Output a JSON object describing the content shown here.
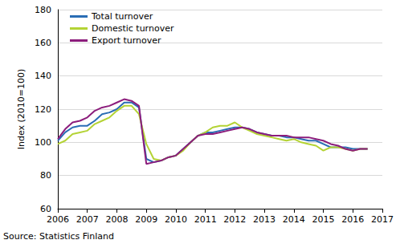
{
  "chart_data": {
    "type": "line",
    "y_label": "Index (2010=100)",
    "source": "Source: Statistics Finland",
    "x": [
      2006,
      2006.25,
      2006.5,
      2006.75,
      2007,
      2007.25,
      2007.5,
      2007.75,
      2008,
      2008.25,
      2008.5,
      2008.75,
      2009,
      2009.25,
      2009.5,
      2009.75,
      2010,
      2010.25,
      2010.5,
      2010.75,
      2011,
      2011.25,
      2011.5,
      2011.75,
      2012,
      2012.25,
      2012.5,
      2012.75,
      2013,
      2013.25,
      2013.5,
      2013.75,
      2014,
      2014.25,
      2014.5,
      2014.75,
      2015,
      2015.25,
      2015.5,
      2015.75,
      2016,
      2016.25,
      2016.5
    ],
    "series": [
      {
        "name": "Total turnover",
        "color": "#2a6db5",
        "values": [
          101,
          106,
          109,
          110,
          110,
          113,
          117,
          118,
          120,
          124,
          124,
          121,
          90,
          88,
          89,
          91,
          92,
          96,
          100,
          104,
          106,
          106,
          107,
          108,
          109,
          109,
          108,
          106,
          105,
          104,
          104,
          103,
          103,
          102,
          101,
          101,
          99,
          97,
          97,
          97,
          96,
          96,
          96
        ]
      },
      {
        "name": "Domestic turnover",
        "color": "#b4d335",
        "values": [
          99,
          101,
          105,
          106,
          107,
          111,
          113,
          115,
          119,
          122,
          122,
          117,
          99,
          90,
          89,
          91,
          92,
          95,
          100,
          104,
          106,
          109,
          110,
          110,
          112,
          109,
          107,
          105,
          104,
          103,
          102,
          101,
          102,
          100,
          99,
          98,
          95,
          97,
          97,
          96,
          95,
          96,
          96
        ]
      },
      {
        "name": "Export turnover",
        "color": "#8c1d7c",
        "values": [
          102,
          108,
          112,
          113,
          115,
          119,
          121,
          122,
          124,
          126,
          125,
          122,
          87,
          88,
          89,
          91,
          92,
          96,
          100,
          104,
          105,
          105,
          106,
          107,
          108,
          109,
          108,
          106,
          105,
          104,
          104,
          104,
          103,
          103,
          103,
          102,
          101,
          99,
          98,
          96,
          95,
          96,
          96
        ]
      }
    ],
    "xlim": [
      2006,
      2017
    ],
    "xticks": [
      2006,
      2007,
      2008,
      2009,
      2010,
      2011,
      2012,
      2013,
      2014,
      2015,
      2016,
      2017
    ],
    "ylim": [
      60,
      180
    ],
    "yticks": [
      60,
      80,
      100,
      120,
      140,
      160,
      180
    ],
    "grid": true,
    "legend": "top-left"
  }
}
